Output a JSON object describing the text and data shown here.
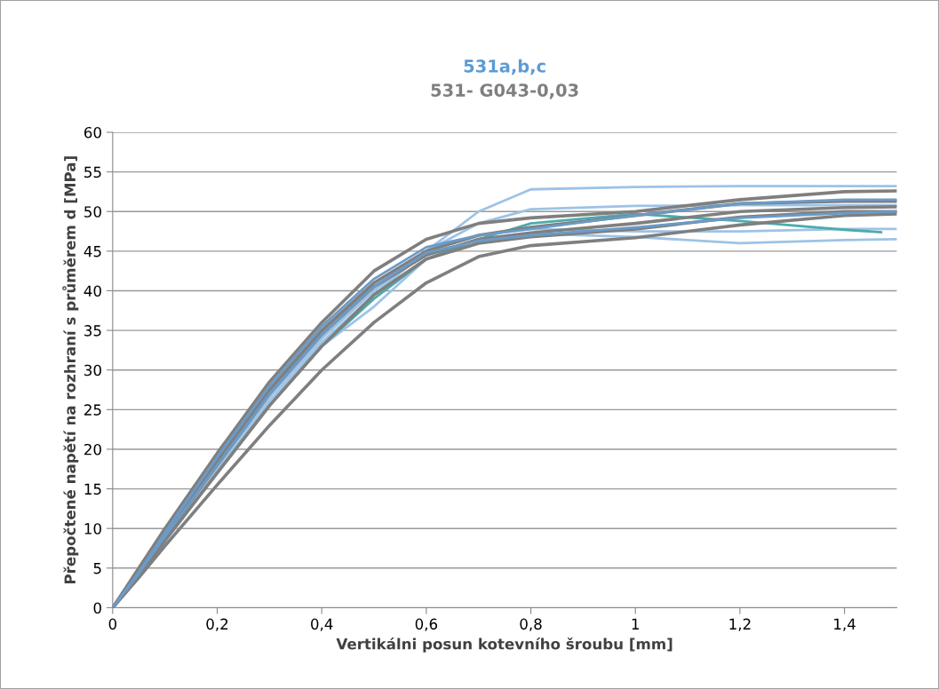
{
  "chart_data": {
    "type": "line",
    "title": "531a,b,c",
    "subtitle": "531- G043-0,03",
    "xlabel": "Vertikálni posun kotevního šroubu [mm]",
    "ylabel": "Přepočtené napětí na rozhraní s průměrem d [MPa]",
    "x": [
      0,
      0.05,
      0.1,
      0.2,
      0.3,
      0.4,
      0.5,
      0.6,
      0.7,
      0.8,
      1.0,
      1.2,
      1.4,
      1.5
    ],
    "series": [
      {
        "color": "#9dc3e6",
        "values": [
          0,
          4,
          8.5,
          17.5,
          26.5,
          34,
          40,
          45,
          50,
          52.8,
          53.1,
          53.2,
          53.2,
          53.2
        ]
      },
      {
        "color": "#9dc3e6",
        "values": [
          0,
          4,
          8.5,
          17,
          26,
          33.5,
          39.5,
          45,
          48.5,
          50.3,
          50.7,
          50.8,
          50.8,
          50.8
        ]
      },
      {
        "color": "#9dc3e6",
        "values": [
          0,
          4,
          8.3,
          17,
          25.5,
          33,
          38,
          44,
          46.5,
          47.2,
          46.8,
          46,
          46.4,
          46.5
        ]
      },
      {
        "color": "#9dc3e6",
        "values": [
          0,
          4.2,
          8.5,
          17.5,
          26.5,
          34,
          40,
          45,
          47,
          47.8,
          47.5,
          47.5,
          47.8,
          47.8
        ]
      },
      {
        "color": "#4bacac",
        "x": [
          0,
          0.05,
          0.1,
          0.2,
          0.3,
          0.4,
          0.5,
          0.6,
          0.7,
          0.8,
          1.0,
          1.2,
          1.4,
          1.47
        ],
        "values": [
          0,
          4,
          8.5,
          17,
          25.5,
          33,
          39,
          44,
          46.5,
          48.5,
          49.7,
          48.8,
          47.7,
          47.4
        ]
      },
      {
        "color": "#7f7f7f",
        "values": [
          0,
          5,
          10,
          19.5,
          28.5,
          36,
          42.5,
          46.5,
          48.5,
          49.2,
          50,
          51.5,
          52.5,
          52.6
        ]
      },
      {
        "color": "#7f7f7f",
        "values": [
          0,
          4.5,
          9.5,
          18.5,
          27.5,
          35,
          41,
          45,
          47,
          48,
          49.5,
          51,
          51.3,
          51.3
        ]
      },
      {
        "color": "#7f7f7f",
        "values": [
          0,
          4.5,
          9,
          18,
          27,
          34.5,
          40.5,
          44.5,
          46.5,
          47.3,
          48.5,
          50,
          50.5,
          50.6
        ]
      },
      {
        "color": "#7f7f7f",
        "values": [
          0,
          4,
          8.5,
          17,
          25.5,
          33,
          39.5,
          44,
          46,
          46.8,
          47.8,
          49.3,
          50,
          50
        ]
      },
      {
        "color": "#7f7f7f",
        "values": [
          0,
          3.8,
          7.8,
          15.5,
          23,
          30,
          36,
          41,
          44.3,
          45.7,
          46.7,
          48.3,
          49.5,
          49.7
        ]
      },
      {
        "color": "#6a9bc9",
        "values": [
          0,
          4.5,
          9.5,
          19,
          28,
          35.5,
          41.5,
          45.5,
          47,
          47.8,
          49.5,
          51,
          51.5,
          51.5
        ]
      },
      {
        "color": "#6a9bc9",
        "values": [
          0,
          4.3,
          9,
          18,
          27,
          34.5,
          40.5,
          44.8,
          46.3,
          47,
          48,
          49.2,
          49.8,
          50
        ]
      }
    ],
    "xlim": [
      0,
      1.5
    ],
    "xticks": [
      0,
      {
        "value": 0.2,
        "label": "0,2"
      },
      {
        "value": 0.4,
        "label": "0,4"
      },
      {
        "value": 0.6,
        "label": "0,6"
      },
      {
        "value": 0.8,
        "label": "0,8"
      },
      1,
      {
        "value": 1.2,
        "label": "1,2"
      },
      {
        "value": 1.4,
        "label": "1,4"
      }
    ],
    "ylim": [
      0,
      60
    ],
    "yticks": [
      0,
      5,
      10,
      15,
      20,
      25,
      30,
      35,
      40,
      45,
      50,
      55,
      60
    ],
    "grid": "y",
    "legend": false,
    "marker": "none",
    "line_style": "solid"
  }
}
